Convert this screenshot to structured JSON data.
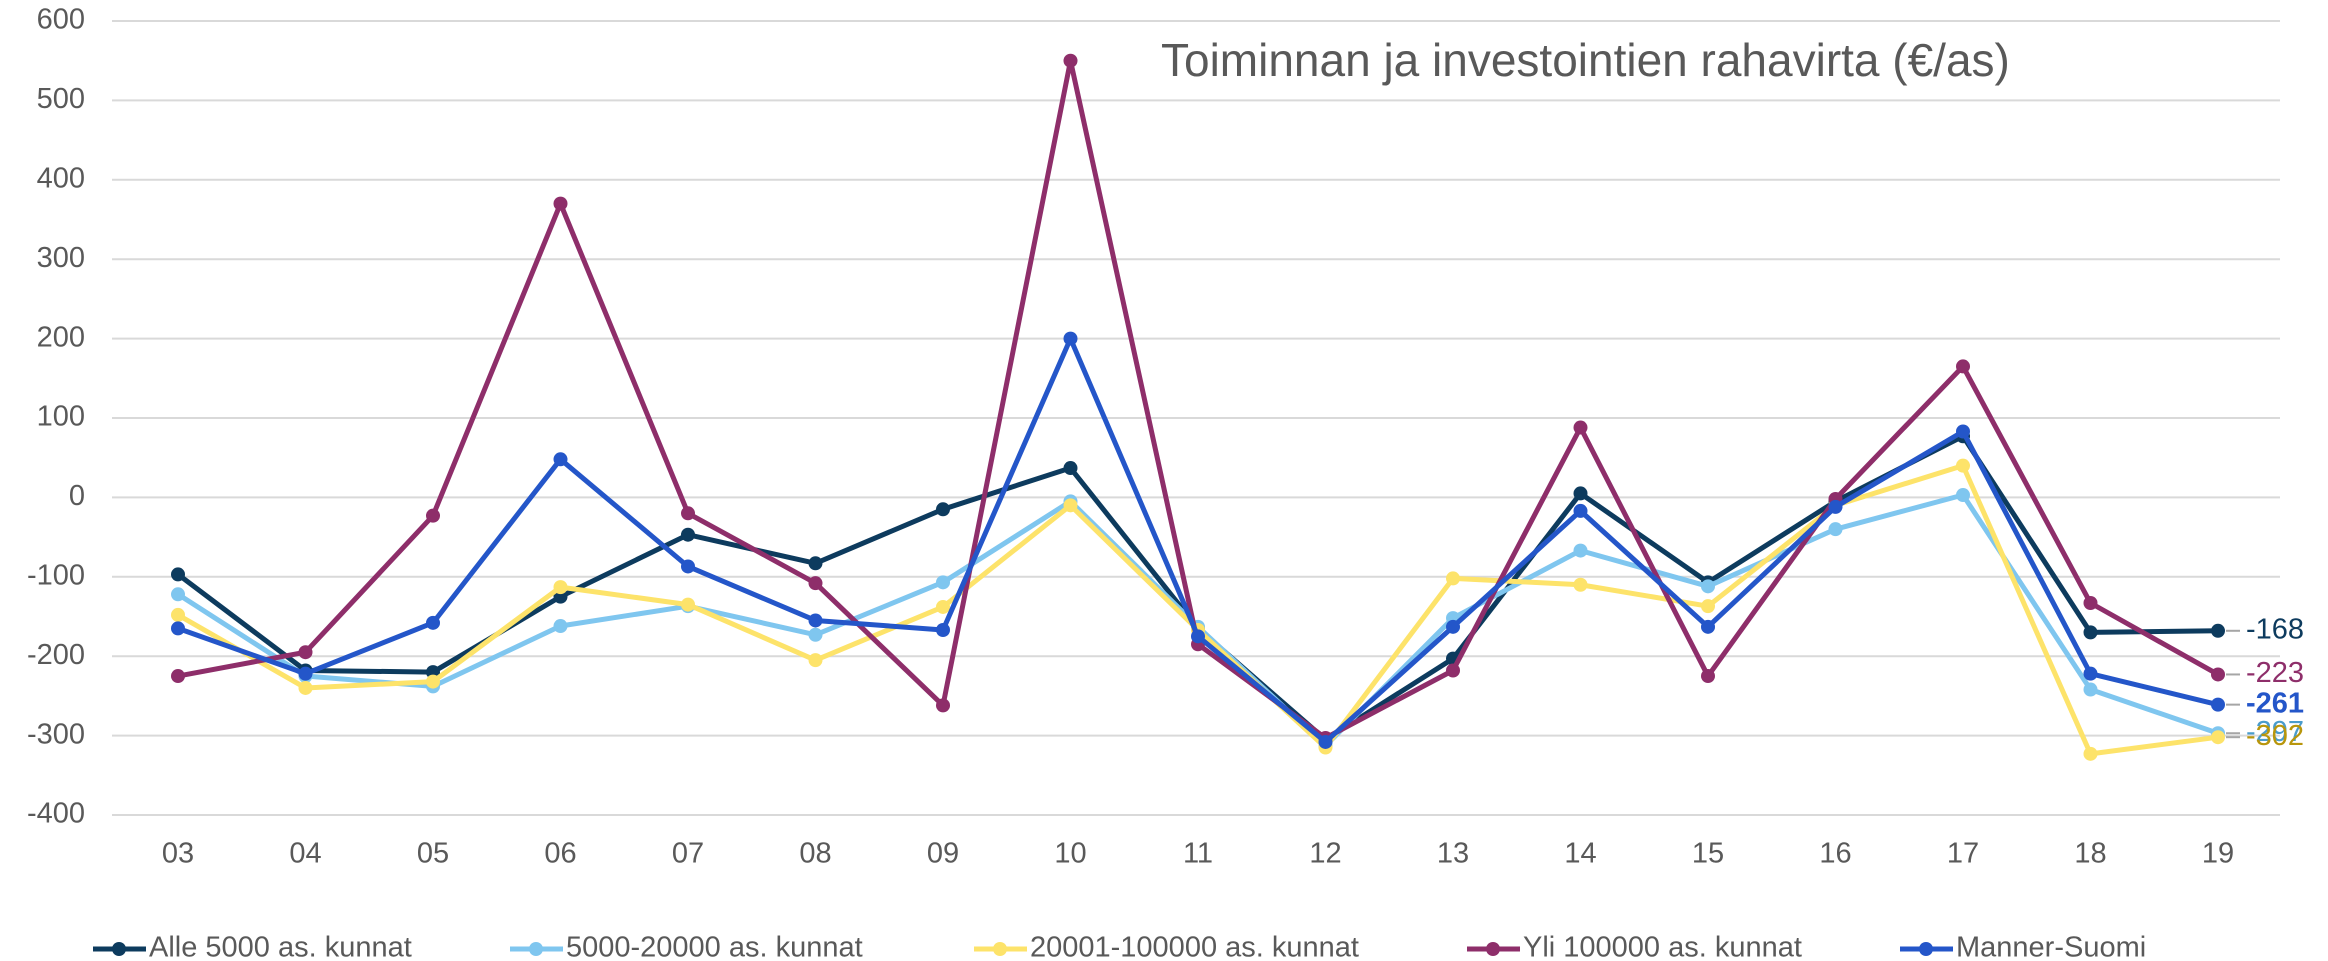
{
  "chart_data": {
    "type": "line",
    "title": "Toiminnan ja investointien rahavirta (€/as)",
    "categories": [
      "03",
      "04",
      "05",
      "06",
      "07",
      "08",
      "09",
      "10",
      "11",
      "12",
      "13",
      "14",
      "15",
      "16",
      "17",
      "18",
      "19"
    ],
    "series": [
      {
        "name": "Alle 5000 as. kunnat",
        "color": "#0d3b5e",
        "values": [
          -97,
          -218,
          -220,
          -125,
          -47,
          -83,
          -15,
          37,
          -165,
          -305,
          -203,
          5,
          -107,
          -5,
          77,
          -170,
          -168
        ]
      },
      {
        "name": "5000-20000 as. kunnat",
        "color": "#7fc6ef",
        "values": [
          -122,
          -225,
          -238,
          -162,
          -137,
          -173,
          -107,
          -5,
          -163,
          -313,
          -152,
          -67,
          -112,
          -40,
          3,
          -242,
          -297
        ]
      },
      {
        "name": "20001-100000 as. kunnat",
        "color": "#fde36a",
        "values": [
          -148,
          -240,
          -232,
          -113,
          -135,
          -205,
          -138,
          -10,
          -167,
          -315,
          -102,
          -110,
          -137,
          -10,
          40,
          -323,
          -302
        ]
      },
      {
        "name": "Yli 100000 as. kunnat",
        "color": "#8e2e6a",
        "values": [
          -225,
          -195,
          -23,
          370,
          -20,
          -108,
          -262,
          550,
          -185,
          -303,
          -218,
          88,
          -225,
          -2,
          165,
          -133,
          -223
        ]
      },
      {
        "name": "Manner-Suomi",
        "color": "#2456c9",
        "values": [
          -165,
          -222,
          -158,
          48,
          -87,
          -155,
          -167,
          200,
          -175,
          -308,
          -163,
          -17,
          -163,
          -12,
          83,
          -222,
          -261
        ]
      }
    ],
    "ylim": [
      -400,
      600
    ],
    "yticks": [
      -400,
      -300,
      -200,
      -100,
      0,
      100,
      200,
      300,
      400,
      500,
      600
    ],
    "grid": true,
    "legend": "bottom"
  }
}
